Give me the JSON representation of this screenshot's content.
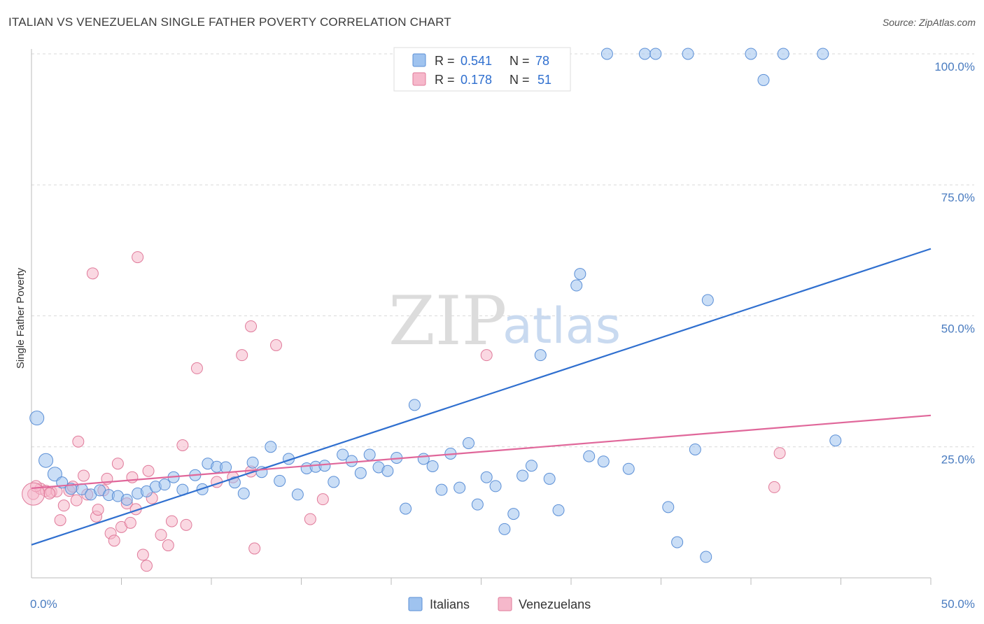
{
  "title": "ITALIAN VS VENEZUELAN SINGLE FATHER POVERTY CORRELATION CHART",
  "source": "Source: ZipAtlas.com",
  "watermark": {
    "part1": "ZIP",
    "part2": "atlas"
  },
  "legend_top": {
    "rows": [
      {
        "r_label": "R =",
        "r_value": "0.541",
        "n_label": "N =",
        "n_value": "78",
        "color": "#9fc3ef",
        "edge": "#5b8fd6"
      },
      {
        "r_label": "R =",
        "r_value": "0.178",
        "n_label": "N =",
        "n_value": "51",
        "color": "#f6b8cb",
        "edge": "#e07a9a"
      }
    ]
  },
  "legend_bottom": [
    {
      "label": "Italians",
      "color": "#9fc3ef",
      "edge": "#5b8fd6"
    },
    {
      "label": "Venezuelans",
      "color": "#f6b8cb",
      "edge": "#e07a9a"
    }
  ],
  "chart_data": {
    "type": "scatter",
    "title": "ITALIAN VS VENEZUELAN SINGLE FATHER POVERTY CORRELATION CHART",
    "xlabel": "",
    "ylabel": "Single Father Poverty",
    "xlim": [
      0,
      50
    ],
    "ylim": [
      0,
      102
    ],
    "x_tick_labels": [
      "0.0%",
      "50.0%"
    ],
    "y_ticks": [
      25,
      50,
      75,
      100
    ],
    "y_tick_labels": [
      "25.0%",
      "50.0%",
      "75.0%",
      "100.0%"
    ],
    "grid": true,
    "legend": "top-center",
    "series": [
      {
        "name": "Italians",
        "color": "#5b8fd6",
        "fill": "#9fc3ef",
        "trend": {
          "x": [
            0,
            50
          ],
          "y": [
            6.3,
            62.8
          ]
        },
        "points": [
          [
            0.3,
            30.5
          ],
          [
            0.8,
            22.4
          ],
          [
            1.3,
            19.8
          ],
          [
            1.7,
            18.2
          ],
          [
            2.2,
            17.0
          ],
          [
            2.8,
            16.9
          ],
          [
            3.3,
            15.9
          ],
          [
            3.8,
            16.7
          ],
          [
            4.3,
            15.8
          ],
          [
            4.8,
            15.6
          ],
          [
            5.3,
            14.9
          ],
          [
            5.9,
            16.1
          ],
          [
            6.4,
            16.5
          ],
          [
            6.9,
            17.4
          ],
          [
            7.4,
            17.8
          ],
          [
            7.9,
            19.2
          ],
          [
            8.4,
            16.8
          ],
          [
            9.1,
            19.6
          ],
          [
            9.5,
            16.9
          ],
          [
            9.8,
            21.8
          ],
          [
            10.3,
            21.2
          ],
          [
            10.8,
            21.1
          ],
          [
            11.3,
            18.2
          ],
          [
            11.8,
            16.1
          ],
          [
            12.3,
            22.0
          ],
          [
            12.8,
            20.2
          ],
          [
            13.3,
            25.0
          ],
          [
            13.8,
            18.5
          ],
          [
            14.3,
            22.7
          ],
          [
            14.8,
            15.9
          ],
          [
            15.3,
            20.9
          ],
          [
            15.8,
            21.2
          ],
          [
            16.3,
            21.4
          ],
          [
            16.8,
            18.3
          ],
          [
            17.3,
            23.5
          ],
          [
            17.8,
            22.3
          ],
          [
            18.3,
            20.0
          ],
          [
            18.8,
            23.5
          ],
          [
            19.3,
            21.1
          ],
          [
            19.8,
            20.4
          ],
          [
            20.3,
            22.9
          ],
          [
            20.8,
            13.2
          ],
          [
            21.3,
            33.0
          ],
          [
            21.8,
            22.7
          ],
          [
            22.3,
            21.3
          ],
          [
            22.8,
            16.8
          ],
          [
            23.3,
            23.7
          ],
          [
            23.8,
            17.2
          ],
          [
            24.3,
            25.7
          ],
          [
            24.8,
            14.0
          ],
          [
            25.3,
            19.2
          ],
          [
            25.8,
            17.5
          ],
          [
            26.3,
            9.3
          ],
          [
            26.8,
            12.2
          ],
          [
            27.3,
            19.5
          ],
          [
            27.8,
            21.4
          ],
          [
            28.3,
            42.5
          ],
          [
            28.8,
            18.9
          ],
          [
            29.3,
            12.9
          ],
          [
            30.3,
            55.8
          ],
          [
            30.5,
            58.0
          ],
          [
            31.0,
            23.2
          ],
          [
            31.8,
            22.2
          ],
          [
            33.2,
            20.8
          ],
          [
            35.4,
            13.5
          ],
          [
            35.9,
            6.8
          ],
          [
            36.9,
            24.5
          ],
          [
            37.5,
            4.0
          ],
          [
            37.6,
            53.0
          ],
          [
            32.0,
            100.0
          ],
          [
            34.1,
            100.0
          ],
          [
            34.7,
            100.0
          ],
          [
            36.5,
            100.0
          ],
          [
            40.0,
            100.0
          ],
          [
            41.8,
            100.0
          ],
          [
            44.0,
            100.0
          ],
          [
            40.7,
            95.0
          ],
          [
            44.7,
            26.2
          ]
        ]
      },
      {
        "name": "Venezuelans",
        "color": "#e07a9a",
        "fill": "#f6b8cb",
        "trend": {
          "x": [
            0,
            50
          ],
          "y": [
            17.1,
            31.0
          ]
        },
        "points": [
          [
            0.1,
            16.0
          ],
          [
            0.5,
            17.0
          ],
          [
            0.8,
            16.6
          ],
          [
            1.1,
            16.4
          ],
          [
            1.4,
            16.5
          ],
          [
            1.6,
            11.0
          ],
          [
            1.8,
            13.8
          ],
          [
            2.1,
            16.6
          ],
          [
            2.3,
            17.4
          ],
          [
            2.5,
            14.8
          ],
          [
            2.6,
            26.0
          ],
          [
            2.9,
            19.5
          ],
          [
            3.1,
            15.9
          ],
          [
            3.4,
            58.1
          ],
          [
            3.6,
            11.7
          ],
          [
            4.0,
            16.7
          ],
          [
            4.2,
            18.9
          ],
          [
            4.4,
            8.5
          ],
          [
            4.6,
            7.1
          ],
          [
            4.8,
            21.8
          ],
          [
            5.0,
            9.7
          ],
          [
            5.3,
            14.2
          ],
          [
            5.5,
            10.5
          ],
          [
            5.6,
            19.2
          ],
          [
            5.8,
            13.1
          ],
          [
            5.9,
            61.2
          ],
          [
            6.2,
            4.4
          ],
          [
            6.4,
            2.3
          ],
          [
            6.5,
            20.4
          ],
          [
            6.7,
            15.2
          ],
          [
            7.2,
            8.2
          ],
          [
            7.6,
            6.2
          ],
          [
            7.8,
            10.8
          ],
          [
            8.4,
            25.3
          ],
          [
            8.6,
            10.1
          ],
          [
            9.2,
            40.0
          ],
          [
            10.3,
            18.3
          ],
          [
            11.2,
            19.2
          ],
          [
            11.7,
            42.5
          ],
          [
            12.2,
            48.0
          ],
          [
            12.4,
            5.6
          ],
          [
            13.6,
            44.4
          ],
          [
            15.5,
            11.2
          ],
          [
            16.2,
            15.0
          ],
          [
            25.3,
            42.5
          ],
          [
            41.3,
            17.3
          ],
          [
            41.6,
            23.8
          ],
          [
            12.2,
            20.3
          ],
          [
            3.7,
            13.0
          ],
          [
            0.25,
            17.5
          ],
          [
            1.0,
            16.1
          ]
        ]
      }
    ]
  }
}
